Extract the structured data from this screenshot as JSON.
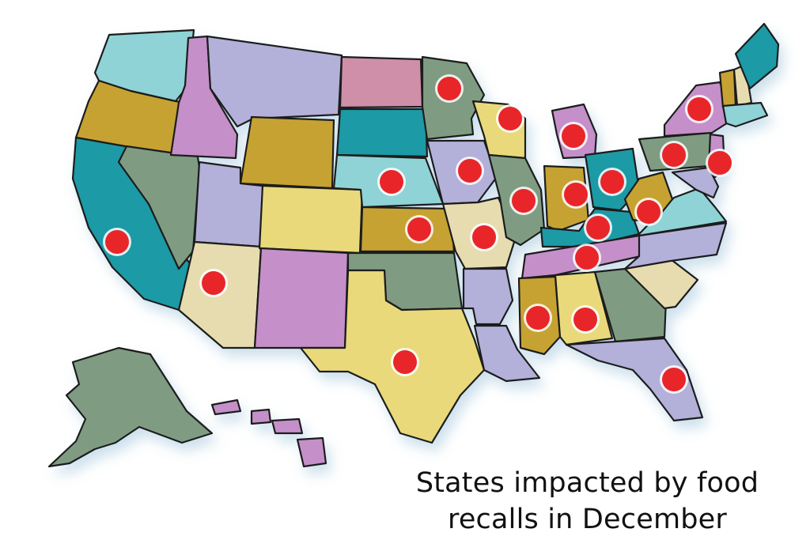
{
  "caption": {
    "line1": "States impacted by food",
    "line2": "recalls in December"
  },
  "colors": {
    "marker": "#e8262a",
    "palette": [
      "#8fd3d6",
      "#c58fc9",
      "#c6a232",
      "#b3b0d9",
      "#e9d97a",
      "#7f9c82",
      "#1c9aa6",
      "#e6dcb0",
      "#cf8fa8"
    ]
  },
  "map": {
    "states": [
      {
        "id": "WA",
        "color": "#8fd3d6"
      },
      {
        "id": "OR",
        "color": "#c6a232"
      },
      {
        "id": "CA",
        "color": "#1c9aa6",
        "impacted": true
      },
      {
        "id": "NV",
        "color": "#7f9c82"
      },
      {
        "id": "ID",
        "color": "#c58fc9"
      },
      {
        "id": "MT",
        "color": "#b3b0d9"
      },
      {
        "id": "WY",
        "color": "#c6a232"
      },
      {
        "id": "UT",
        "color": "#b3b0d9"
      },
      {
        "id": "AZ",
        "color": "#e6dcb0",
        "impacted": true
      },
      {
        "id": "CO",
        "color": "#e9d97a"
      },
      {
        "id": "NM",
        "color": "#c58fc9"
      },
      {
        "id": "ND",
        "color": "#cf8fa8"
      },
      {
        "id": "SD",
        "color": "#1c9aa6"
      },
      {
        "id": "NE",
        "color": "#8fd3d6",
        "impacted": true
      },
      {
        "id": "KS",
        "color": "#c6a232",
        "impacted": true
      },
      {
        "id": "OK",
        "color": "#7f9c82"
      },
      {
        "id": "TX",
        "color": "#e9d97a",
        "impacted": true
      },
      {
        "id": "MN",
        "color": "#7f9c82",
        "impacted": true
      },
      {
        "id": "IA",
        "color": "#b3b0d9",
        "impacted": true
      },
      {
        "id": "MO",
        "color": "#e6dcb0",
        "impacted": true
      },
      {
        "id": "AR",
        "color": "#b3b0d9"
      },
      {
        "id": "LA",
        "color": "#b3b0d9"
      },
      {
        "id": "WI",
        "color": "#e9d97a",
        "impacted": true
      },
      {
        "id": "IL",
        "color": "#7f9c82",
        "impacted": true
      },
      {
        "id": "MI",
        "color": "#c58fc9",
        "impacted": true
      },
      {
        "id": "IN",
        "color": "#c6a232",
        "impacted": true
      },
      {
        "id": "OH",
        "color": "#1c9aa6",
        "impacted": true
      },
      {
        "id": "KY",
        "color": "#1c9aa6",
        "impacted": true
      },
      {
        "id": "TN",
        "color": "#c58fc9",
        "impacted": true
      },
      {
        "id": "MS",
        "color": "#c6a232",
        "impacted": true
      },
      {
        "id": "AL",
        "color": "#e9d97a",
        "impacted": true
      },
      {
        "id": "GA",
        "color": "#7f9c82"
      },
      {
        "id": "FL",
        "color": "#b3b0d9",
        "impacted": true
      },
      {
        "id": "SC",
        "color": "#e6dcb0"
      },
      {
        "id": "NC",
        "color": "#b3b0d9"
      },
      {
        "id": "VA",
        "color": "#8fd3d6"
      },
      {
        "id": "WV",
        "color": "#c6a232",
        "impacted": true
      },
      {
        "id": "PA",
        "color": "#7f9c82",
        "impacted": true
      },
      {
        "id": "NY",
        "color": "#c58fc9",
        "impacted": true
      },
      {
        "id": "NJ",
        "color": "#c58fc9",
        "impacted": true
      },
      {
        "id": "MD",
        "color": "#b3b0d9"
      },
      {
        "id": "VT",
        "color": "#c6a232"
      },
      {
        "id": "NH",
        "color": "#e6dcb0"
      },
      {
        "id": "ME",
        "color": "#1c9aa6"
      },
      {
        "id": "MA",
        "color": "#8fd3d6"
      },
      {
        "id": "AK",
        "color": "#7f9c82"
      },
      {
        "id": "HI",
        "color": "#c58fc9"
      }
    ]
  }
}
